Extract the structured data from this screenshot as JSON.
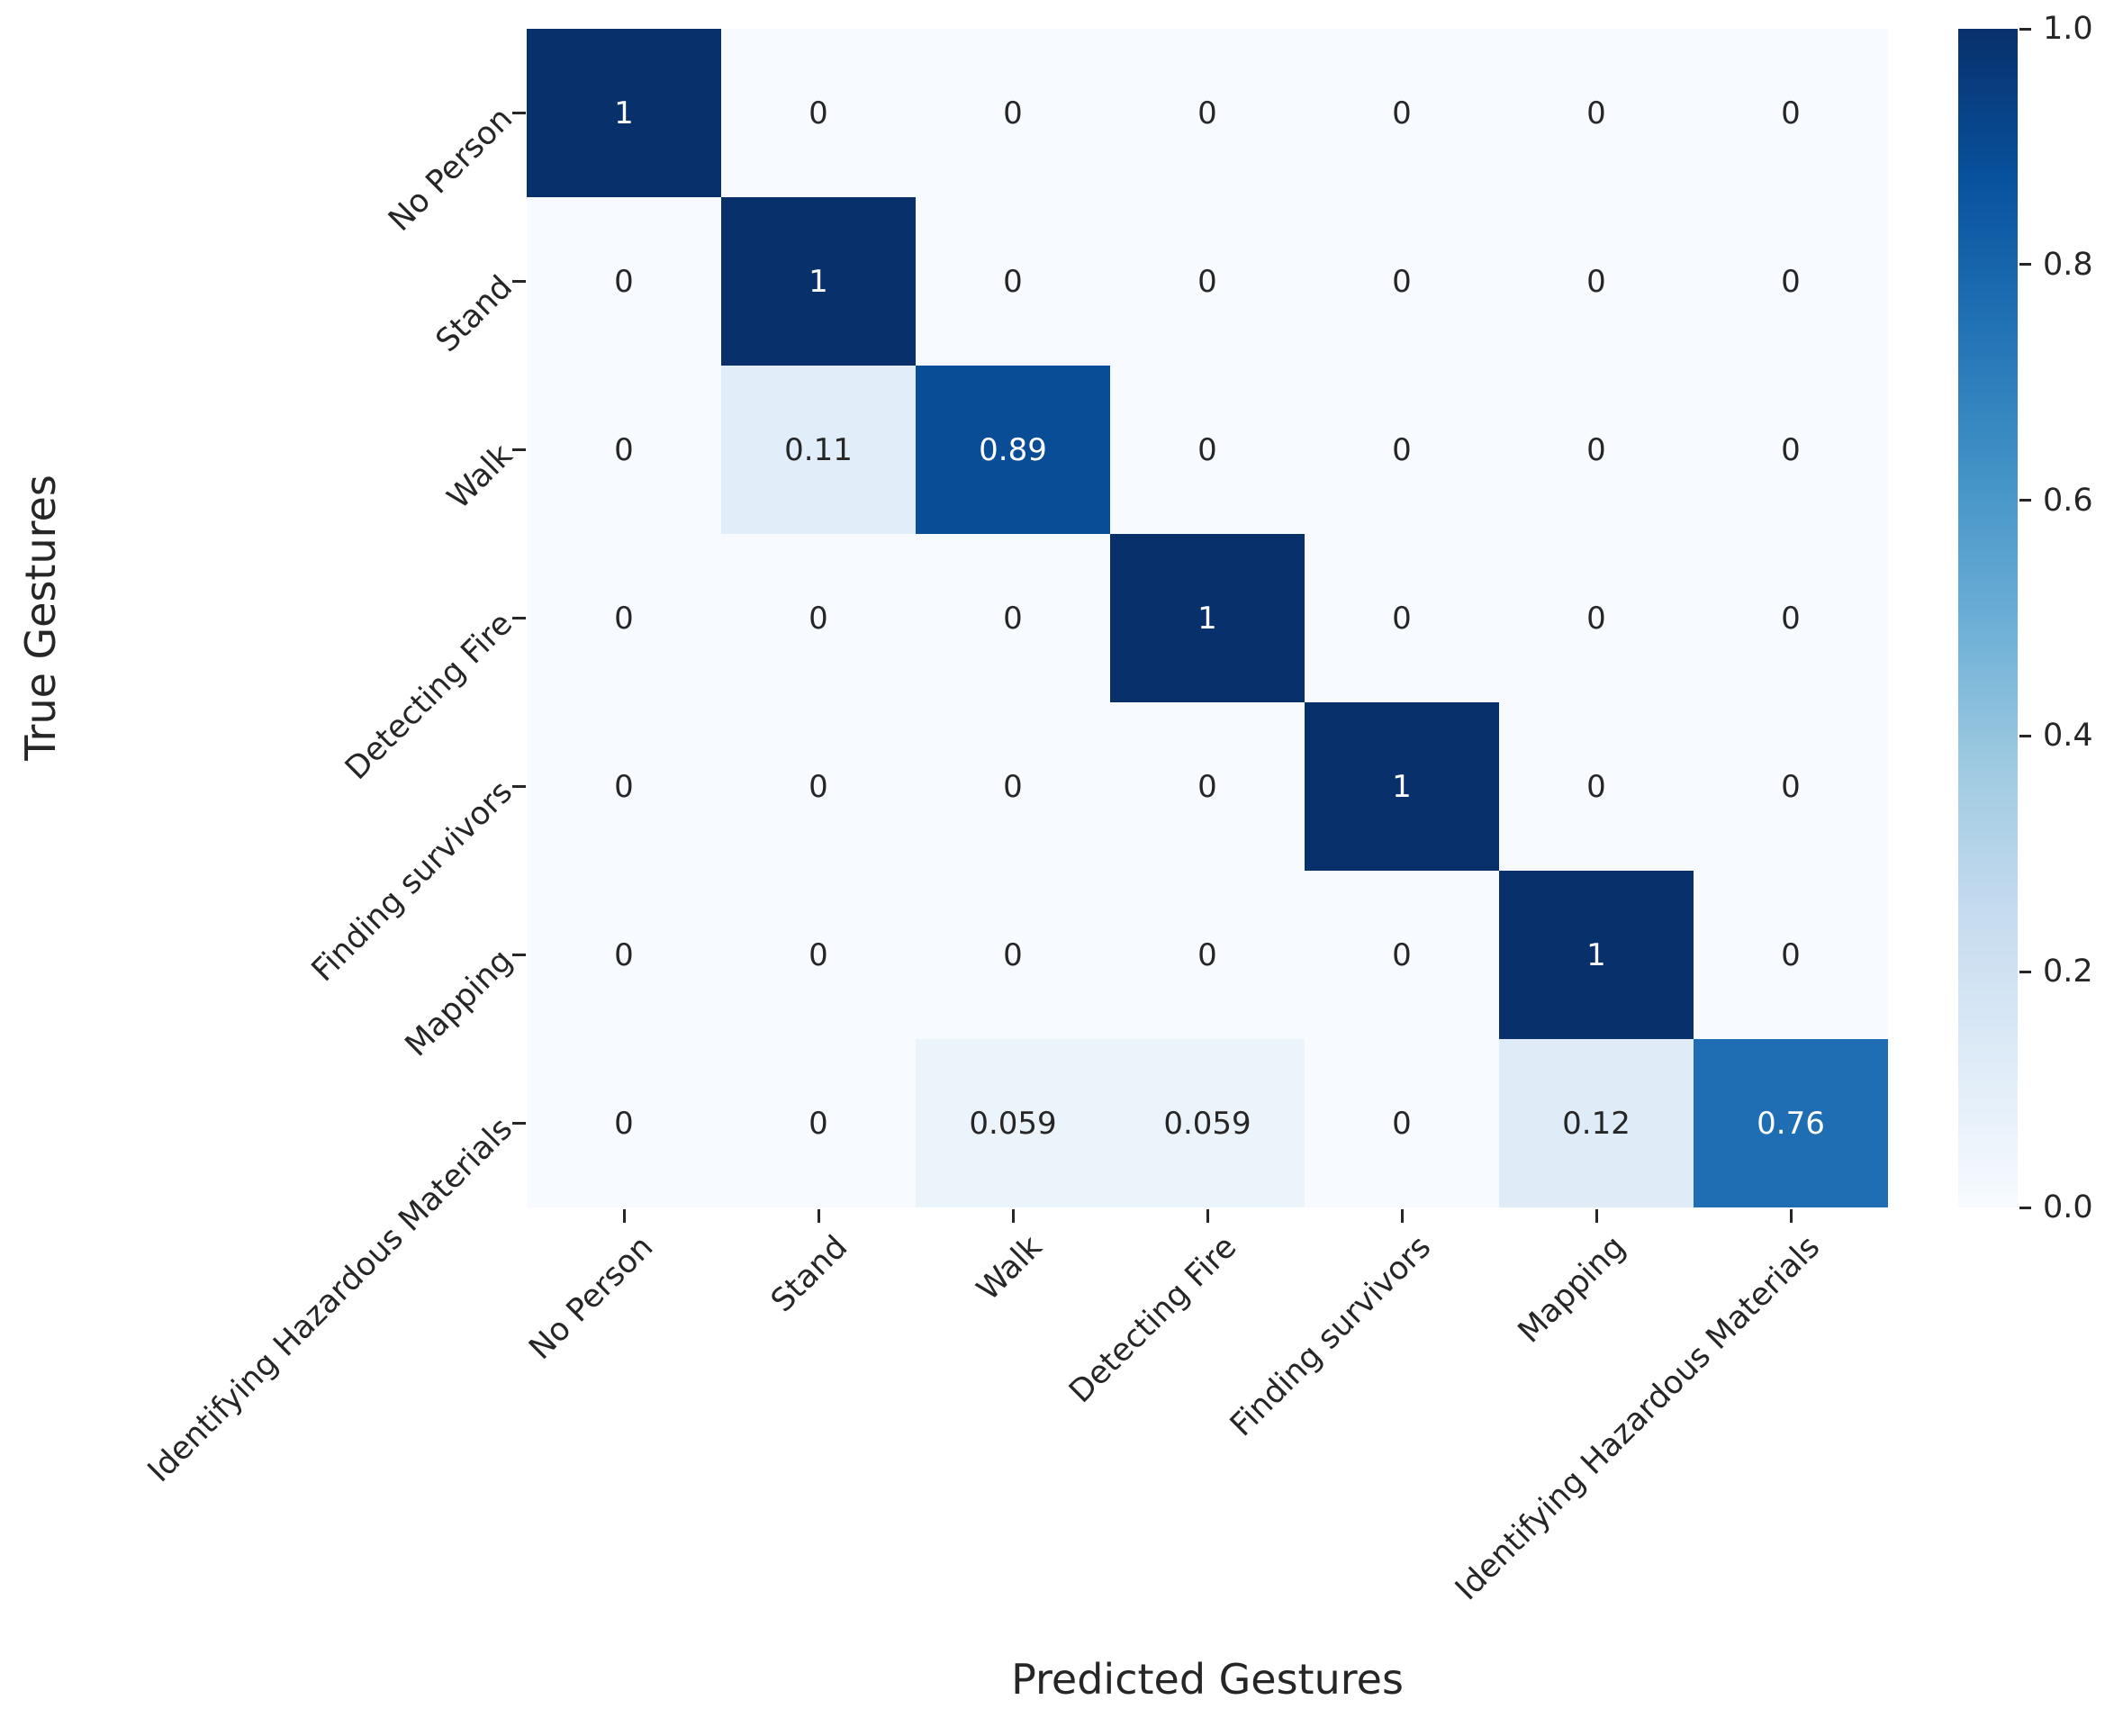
{
  "chart_data": {
    "type": "heatmap",
    "title": "",
    "xlabel": "Predicted Gestures",
    "ylabel": "True Gestures",
    "x_tick_labels": [
      "No Person",
      "Stand",
      "Walk",
      "Detecting Fire",
      "Finding survivors",
      "Mapping",
      "Identifying Hazardous Materials"
    ],
    "y_tick_labels": [
      "No Person",
      "Stand",
      "Walk",
      "Detecting Fire",
      "Finding survivors",
      "Mapping",
      "Identifying Hazardous Materials"
    ],
    "matrix": [
      [
        1,
        0,
        0,
        0,
        0,
        0,
        0
      ],
      [
        0,
        1,
        0,
        0,
        0,
        0,
        0
      ],
      [
        0,
        0.11,
        0.89,
        0,
        0,
        0,
        0
      ],
      [
        0,
        0,
        0,
        1,
        0,
        0,
        0
      ],
      [
        0,
        0,
        0,
        0,
        1,
        0,
        0
      ],
      [
        0,
        0,
        0,
        0,
        0,
        1,
        0
      ],
      [
        0,
        0,
        0.059,
        0.059,
        0,
        0.12,
        0.76
      ]
    ],
    "cell_labels": [
      [
        "1",
        "0",
        "0",
        "0",
        "0",
        "0",
        "0"
      ],
      [
        "0",
        "1",
        "0",
        "0",
        "0",
        "0",
        "0"
      ],
      [
        "0",
        "0.11",
        "0.89",
        "0",
        "0",
        "0",
        "0"
      ],
      [
        "0",
        "0",
        "0",
        "1",
        "0",
        "0",
        "0"
      ],
      [
        "0",
        "0",
        "0",
        "0",
        "1",
        "0",
        "0"
      ],
      [
        "0",
        "0",
        "0",
        "0",
        "0",
        "1",
        "0"
      ],
      [
        "0",
        "0",
        "0.059",
        "0.059",
        "0",
        "0.12",
        "0.76"
      ]
    ],
    "vmin": 0,
    "vmax": 1,
    "colormap": "Blues",
    "grid": false,
    "legend_position": "none",
    "colorbar": {
      "position": "right",
      "ticks": [
        "1.0",
        "0.8",
        "0.6",
        "0.4",
        "0.2",
        "0.0"
      ]
    },
    "colors": {
      "cmap_low": "#f7fbff",
      "cmap_high": "#08306b",
      "annotation_dark": "#262626",
      "annotation_light": "#ffffff",
      "tick_color": "#262626"
    }
  }
}
